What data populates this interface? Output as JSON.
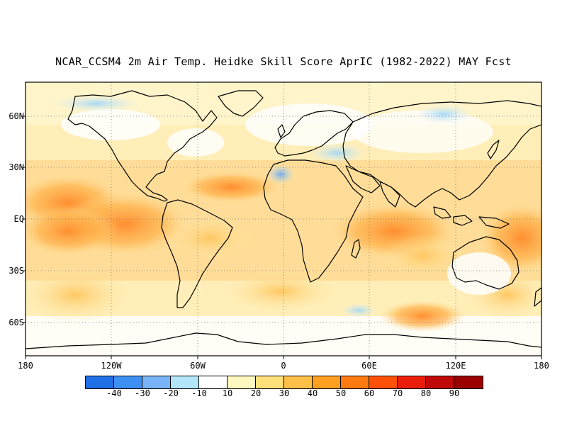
{
  "title": "NCAR_CCSM4 2m Air Temp. Heidke Skill Score AprIC (1982-2022) MAY Fcst",
  "map": {
    "lat_labels": [
      "60N",
      "30N",
      "EQ",
      "30S",
      "60S"
    ],
    "lon_labels": [
      "180",
      "120W",
      "60W",
      "0",
      "60E",
      "120E",
      "180"
    ]
  },
  "colorbar": {
    "colors": [
      "#1f6fe6",
      "#3d8ff2",
      "#78b4f7",
      "#b4e6fa",
      "#ffffff",
      "#fff8c0",
      "#ffe07a",
      "#ffc04a",
      "#ffa020",
      "#ff7a10",
      "#ff5008",
      "#e81e0a",
      "#c00a0a",
      "#9a0000"
    ],
    "labels": [
      "-40",
      "-30",
      "-20",
      "-10",
      "10",
      "20",
      "30",
      "40",
      "50",
      "60",
      "70",
      "80",
      "90"
    ]
  }
}
